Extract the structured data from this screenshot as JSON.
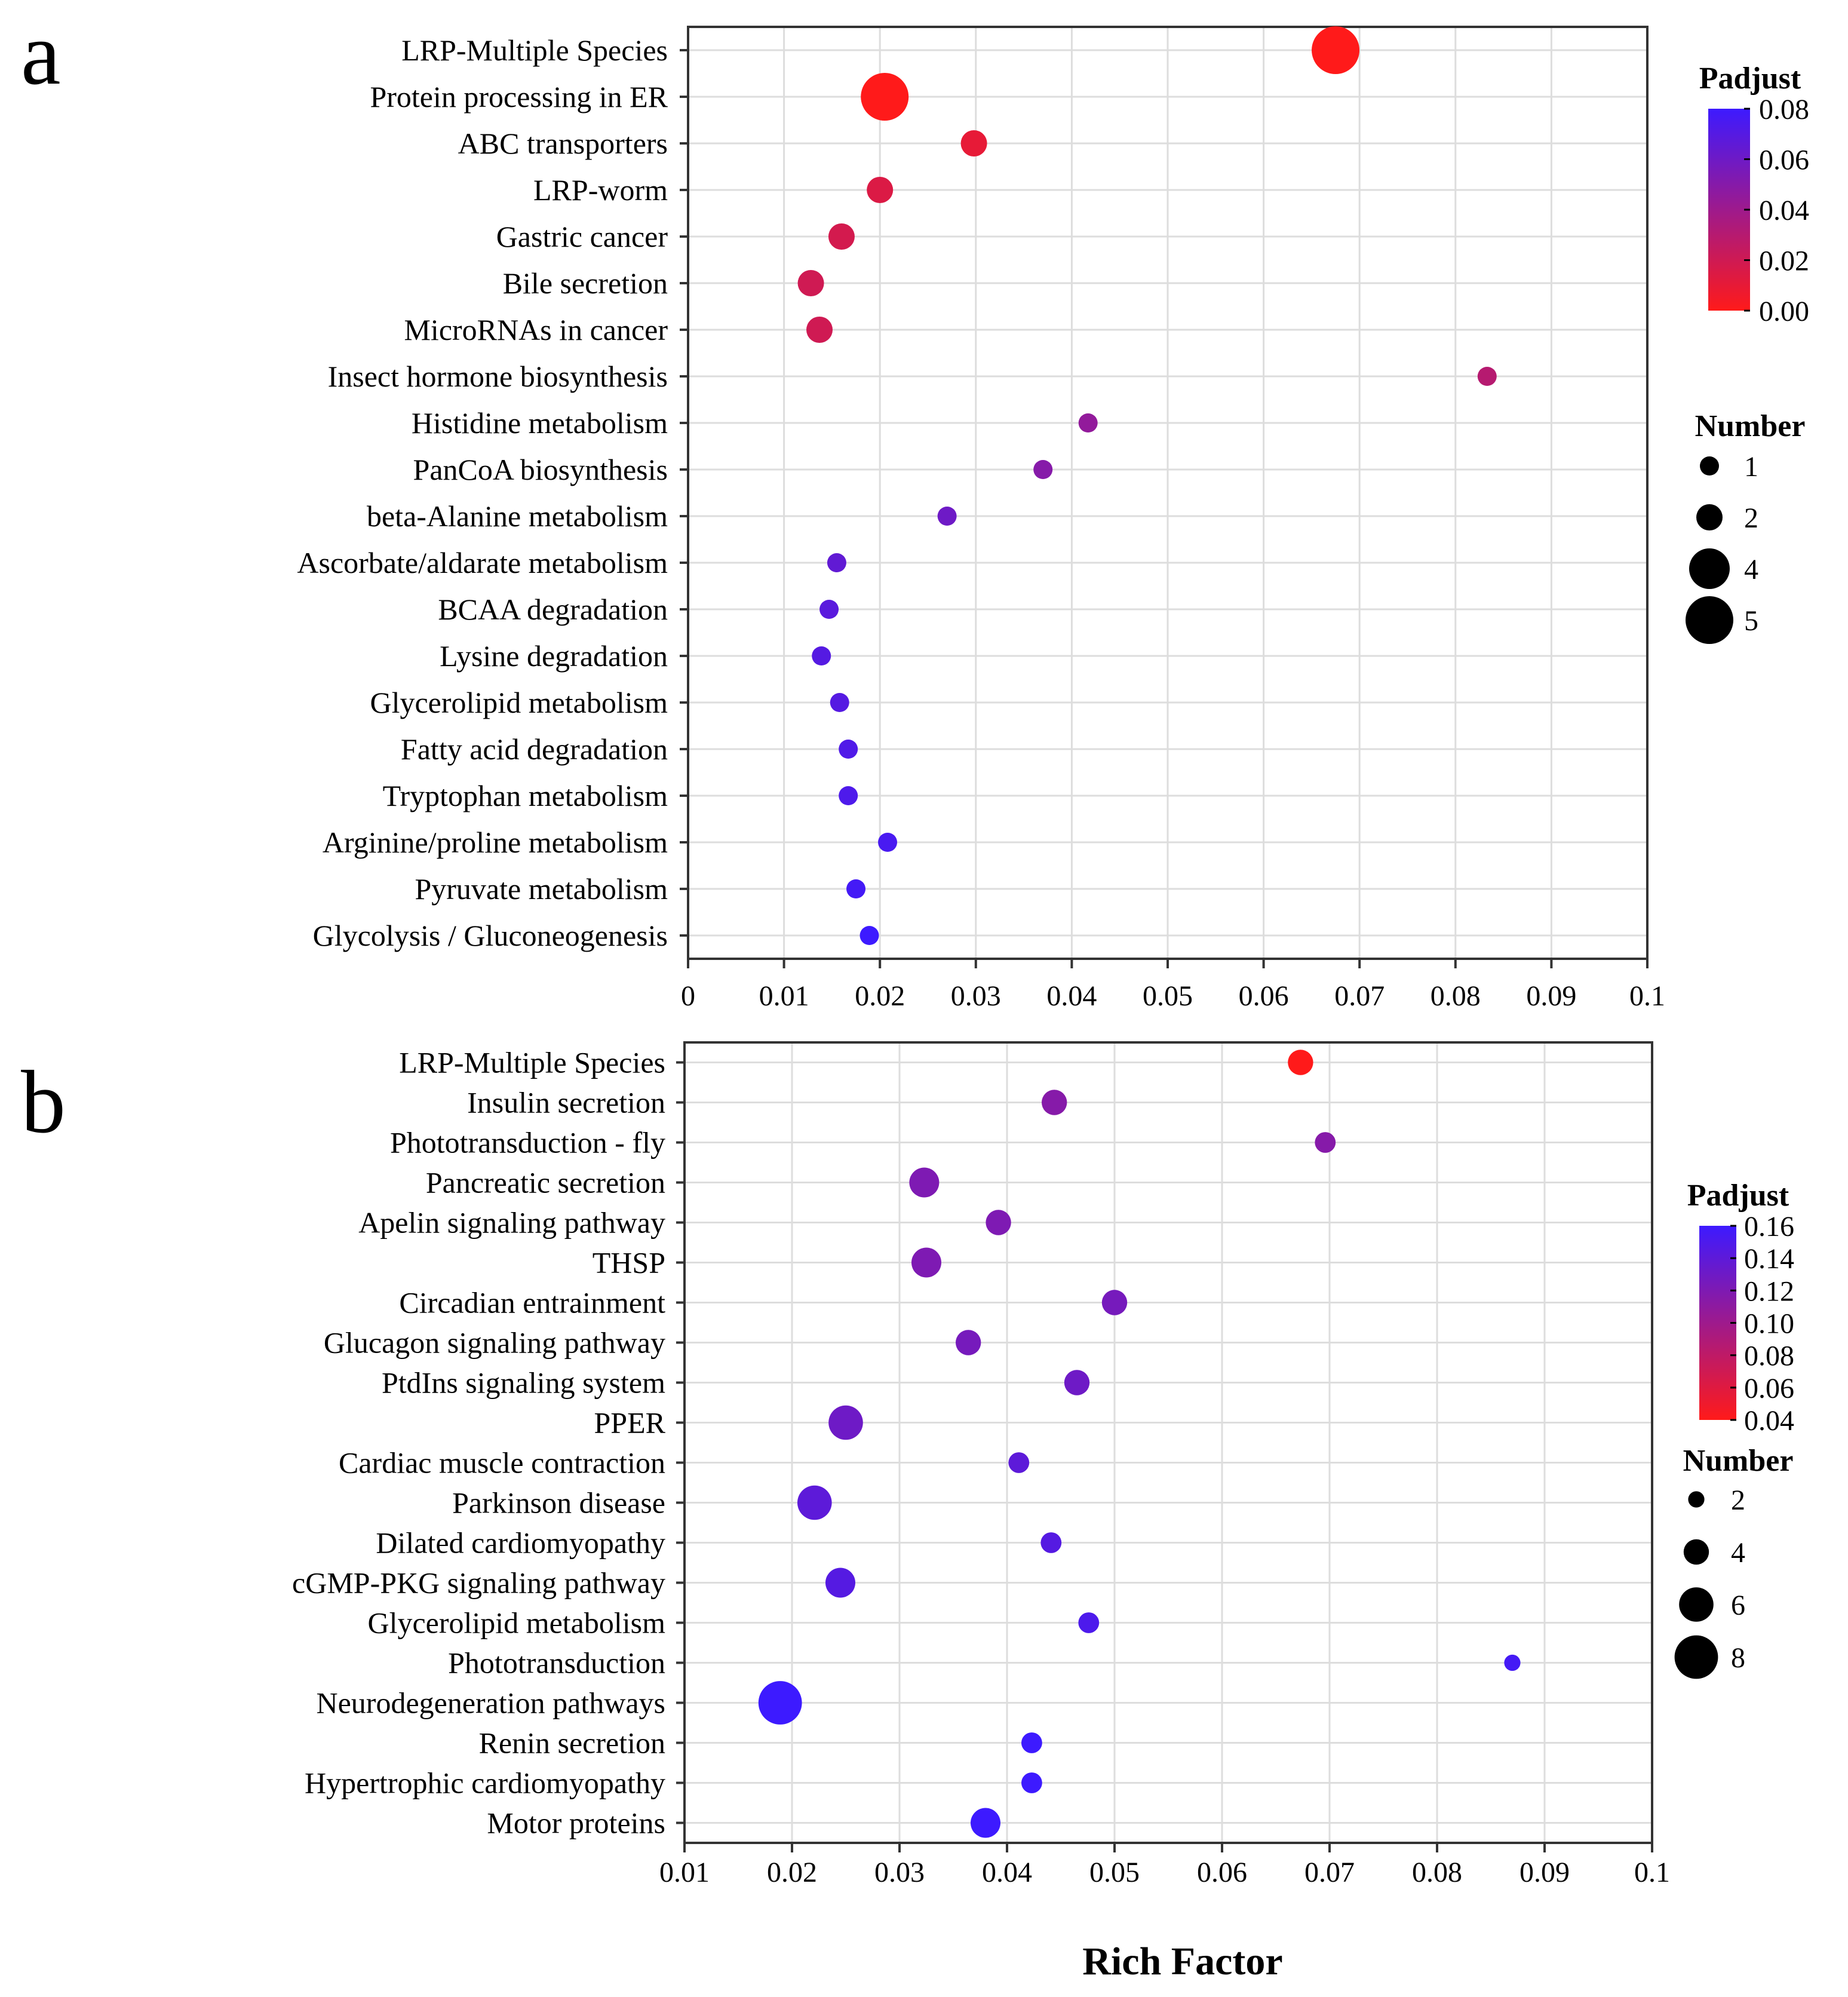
{
  "figure": {
    "xlabel": "Rich Factor"
  },
  "colors": {
    "low_padjust": "#ff1a1a",
    "high_padjust": "#3d1aff",
    "grid": "#dddddd",
    "axis": "#333333"
  },
  "chart_data": [
    {
      "type": "scatter",
      "panel_label": "a",
      "title": "",
      "xlabel": "Rich Factor",
      "ylabel": "",
      "xlim": [
        0,
        0.1
      ],
      "x_ticks": [
        0,
        0.01,
        0.02,
        0.03,
        0.04,
        0.05,
        0.06,
        0.07,
        0.08,
        0.09,
        0.1
      ],
      "x_tick_labels": [
        "0",
        "0.01",
        "0.02",
        "0.03",
        "0.04",
        "0.05",
        "0.06",
        "0.07",
        "0.08",
        "0.09",
        "0.1"
      ],
      "grid": true,
      "color_legend": {
        "title": "Padjust",
        "range": [
          0,
          0.08
        ],
        "ticks": [
          "0.08",
          "0.06",
          "0.04",
          "0.02",
          "0.00"
        ]
      },
      "size_legend": {
        "title": "Number",
        "values": [
          1,
          2,
          4,
          5
        ],
        "labels": [
          "1",
          "2",
          "4",
          "5"
        ]
      },
      "categories": [
        "LRP-Multiple Species",
        "Protein processing in ER",
        "ABC transporters",
        "LRP-worm",
        "Gastric cancer",
        "Bile secretion",
        "MicroRNAs in cancer",
        "Insect hormone biosynthesis",
        "Histidine metabolism",
        "PanCoA biosynthesis",
        "beta-Alanine metabolism",
        "Ascorbate/aldarate metabolism",
        "BCAA degradation",
        "Lysine degradation",
        "Glycerolipid metabolism",
        "Fatty acid degradation",
        "Tryptophan metabolism",
        "Arginine/proline metabolism",
        "Pyruvate metabolism",
        "Glycolysis / Gluconeogenesis"
      ],
      "points": [
        {
          "term": "LRP-Multiple Species",
          "rich_factor": 0.0675,
          "number": 5,
          "padjust": 0.0
        },
        {
          "term": "Protein processing in ER",
          "rich_factor": 0.0205,
          "number": 5,
          "padjust": 0.0
        },
        {
          "term": "ABC transporters",
          "rich_factor": 0.0298,
          "number": 2,
          "padjust": 0.01
        },
        {
          "term": "LRP-worm",
          "rich_factor": 0.02,
          "number": 2,
          "padjust": 0.015
        },
        {
          "term": "Gastric cancer",
          "rich_factor": 0.016,
          "number": 2,
          "padjust": 0.018
        },
        {
          "term": "Bile secretion",
          "rich_factor": 0.0128,
          "number": 2,
          "padjust": 0.02
        },
        {
          "term": "MicroRNAs in cancer",
          "rich_factor": 0.0137,
          "number": 2,
          "padjust": 0.02
        },
        {
          "term": "Insect hormone biosynthesis",
          "rich_factor": 0.0833,
          "number": 1,
          "padjust": 0.03
        },
        {
          "term": "Histidine metabolism",
          "rich_factor": 0.0417,
          "number": 1,
          "padjust": 0.045
        },
        {
          "term": "PanCoA biosynthesis",
          "rich_factor": 0.037,
          "number": 1,
          "padjust": 0.05
        },
        {
          "term": "beta-Alanine metabolism",
          "rich_factor": 0.027,
          "number": 1,
          "padjust": 0.06
        },
        {
          "term": "Ascorbate/aldarate metabolism",
          "rich_factor": 0.0155,
          "number": 1,
          "padjust": 0.065
        },
        {
          "term": "BCAA degradation",
          "rich_factor": 0.0147,
          "number": 1,
          "padjust": 0.068
        },
        {
          "term": "Lysine degradation",
          "rich_factor": 0.0139,
          "number": 1,
          "padjust": 0.07
        },
        {
          "term": "Glycerolipid metabolism",
          "rich_factor": 0.0158,
          "number": 1,
          "padjust": 0.07
        },
        {
          "term": "Fatty acid degradation",
          "rich_factor": 0.0167,
          "number": 1,
          "padjust": 0.072
        },
        {
          "term": "Tryptophan metabolism",
          "rich_factor": 0.0167,
          "number": 1,
          "padjust": 0.073
        },
        {
          "term": "Arginine/proline metabolism",
          "rich_factor": 0.0208,
          "number": 1,
          "padjust": 0.075
        },
        {
          "term": "Pyruvate metabolism",
          "rich_factor": 0.0175,
          "number": 1,
          "padjust": 0.077
        },
        {
          "term": "Glycolysis / Gluconeogenesis",
          "rich_factor": 0.0189,
          "number": 1,
          "padjust": 0.08
        }
      ]
    },
    {
      "type": "scatter",
      "panel_label": "b",
      "title": "",
      "xlabel": "Rich Factor",
      "ylabel": "",
      "xlim": [
        0.01,
        0.1
      ],
      "x_ticks": [
        0.01,
        0.02,
        0.03,
        0.04,
        0.05,
        0.06,
        0.07,
        0.08,
        0.09,
        0.1
      ],
      "x_tick_labels": [
        "0.01",
        "0.02",
        "0.03",
        "0.04",
        "0.05",
        "0.06",
        "0.07",
        "0.08",
        "0.09",
        "0.1"
      ],
      "grid": true,
      "color_legend": {
        "title": "Padjust",
        "range": [
          0.04,
          0.16
        ],
        "ticks": [
          "0.16",
          "0.14",
          "0.12",
          "0.10",
          "0.08",
          "0.06",
          "0.04"
        ]
      },
      "size_legend": {
        "title": "Number",
        "values": [
          2,
          4,
          6,
          8
        ],
        "labels": [
          "2",
          "4",
          "6",
          "8"
        ]
      },
      "categories": [
        "LRP-Multiple Species",
        "Insulin secretion",
        "Phototransduction - fly",
        "Pancreatic secretion",
        "Apelin signaling pathway",
        "THSP",
        "Circadian entrainment",
        "Glucagon signaling pathway",
        "PtdIns signaling system",
        "PPER",
        "Cardiac muscle contraction",
        "Parkinson disease",
        "Dilated cardiomyopathy",
        "cGMP-PKG signaling pathway",
        "Glycerolipid metabolism",
        "Phototransduction",
        "Neurodegeneration pathways",
        "Renin secretion",
        "Hypertrophic cardiomyopathy",
        "Motor proteins"
      ],
      "points": [
        {
          "term": "LRP-Multiple Species",
          "rich_factor": 0.0673,
          "number": 4,
          "padjust": 0.04
        },
        {
          "term": "Insulin secretion",
          "rich_factor": 0.0444,
          "number": 4,
          "padjust": 0.115
        },
        {
          "term": "Phototransduction - fly",
          "rich_factor": 0.0696,
          "number": 3,
          "padjust": 0.115
        },
        {
          "term": "Pancreatic secretion",
          "rich_factor": 0.0323,
          "number": 5,
          "padjust": 0.12
        },
        {
          "term": "Apelin signaling pathway",
          "rich_factor": 0.0392,
          "number": 4,
          "padjust": 0.12
        },
        {
          "term": "THSP",
          "rich_factor": 0.0325,
          "number": 5,
          "padjust": 0.12
        },
        {
          "term": "Circadian entrainment",
          "rich_factor": 0.05,
          "number": 4,
          "padjust": 0.125
        },
        {
          "term": "Glucagon signaling pathway",
          "rich_factor": 0.0364,
          "number": 4,
          "padjust": 0.125
        },
        {
          "term": "PtdIns signaling system",
          "rich_factor": 0.0465,
          "number": 4,
          "padjust": 0.13
        },
        {
          "term": "PPER",
          "rich_factor": 0.025,
          "number": 6,
          "padjust": 0.13
        },
        {
          "term": "Cardiac muscle contraction",
          "rich_factor": 0.0411,
          "number": 3,
          "padjust": 0.14
        },
        {
          "term": "Parkinson disease",
          "rich_factor": 0.0221,
          "number": 6,
          "padjust": 0.14
        },
        {
          "term": "Dilated cardiomyopathy",
          "rich_factor": 0.0441,
          "number": 3,
          "padjust": 0.145
        },
        {
          "term": "cGMP-PKG signaling pathway",
          "rich_factor": 0.0245,
          "number": 5,
          "padjust": 0.145
        },
        {
          "term": "Glycerolipid metabolism",
          "rich_factor": 0.0476,
          "number": 3,
          "padjust": 0.15
        },
        {
          "term": "Phototransduction",
          "rich_factor": 0.087,
          "number": 2,
          "padjust": 0.155
        },
        {
          "term": "Neurodegeneration pathways",
          "rich_factor": 0.0189,
          "number": 8,
          "padjust": 0.16
        },
        {
          "term": "Renin secretion",
          "rich_factor": 0.0423,
          "number": 3,
          "padjust": 0.16
        },
        {
          "term": "Hypertrophic cardiomyopathy",
          "rich_factor": 0.0423,
          "number": 3,
          "padjust": 0.16
        },
        {
          "term": "Motor proteins",
          "rich_factor": 0.038,
          "number": 5,
          "padjust": 0.165
        }
      ]
    }
  ]
}
